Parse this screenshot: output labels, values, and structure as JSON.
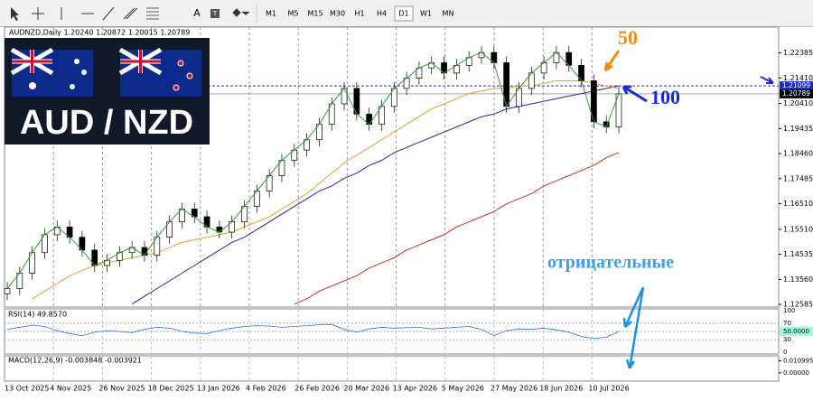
{
  "toolbar": {
    "text_tool": "A",
    "label_tool": "T",
    "timeframes": [
      "M1",
      "M5",
      "M15",
      "M30",
      "H1",
      "H4",
      "D1",
      "W1",
      "MN"
    ]
  },
  "logo": "AUD / NZD",
  "chart": {
    "header": "AUDNZD,Daily  1.20240 1.20872 1.20015 1.20789",
    "ylim": [
      1.1255,
      1.2332
    ],
    "yticks": [
      1.22385,
      {
        "value": 1.2141,
        "label": "1.21410"
      },
      {
        "value": 1.2041,
        "label": "1.20410"
      },
      1.19435,
      {
        "value": 1.1846,
        "label": "1.18460"
      },
      1.17485,
      {
        "value": 1.1651,
        "label": "1.16510"
      },
      {
        "value": 1.1551,
        "label": "1.15510"
      },
      1.14535,
      {
        "value": 1.1356,
        "label": "1.13560"
      },
      1.12585
    ],
    "alert_level": 1.21099,
    "current_price": 1.20789,
    "dates": [
      "13 Oct 2025",
      "4 Nov 2025",
      "26 Nov 2025",
      "18 Dec 2025",
      "13 Jan 2026",
      "4 Feb 2026",
      "26 Feb 2026",
      "20 Mar 2026",
      "13 Apr 2026",
      "5 May 2026",
      "27 May 2026",
      "18 Jun 2026",
      "10 Jul 2026"
    ],
    "close": [
      1.132,
      1.138,
      1.146,
      1.153,
      1.156,
      1.152,
      1.147,
      1.141,
      1.143,
      1.146,
      1.148,
      1.145,
      1.152,
      1.158,
      1.163,
      1.16,
      1.156,
      1.154,
      1.158,
      1.164,
      1.17,
      1.176,
      1.182,
      1.186,
      1.19,
      1.196,
      1.204,
      1.21,
      1.2,
      1.196,
      1.203,
      1.21,
      1.214,
      1.218,
      1.22,
      1.216,
      1.219,
      1.222,
      1.224,
      1.22,
      1.203,
      1.21,
      1.216,
      1.22,
      1.224,
      1.219,
      1.213,
      1.197,
      1.195,
      1.20789
    ],
    "ma50": [
      null,
      null,
      1.128,
      1.131,
      1.134,
      1.137,
      1.139,
      1.141,
      1.142,
      1.143,
      1.144,
      1.145,
      1.146,
      1.148,
      1.15,
      1.151,
      1.152,
      1.153,
      1.154,
      1.156,
      1.158,
      1.16,
      1.163,
      1.166,
      1.169,
      1.173,
      1.177,
      1.181,
      1.184,
      1.187,
      1.19,
      1.193,
      1.196,
      1.199,
      1.202,
      1.204,
      1.206,
      1.208,
      1.209,
      1.21,
      1.21,
      1.211,
      1.211,
      1.212,
      1.213,
      1.213,
      1.213,
      1.212,
      1.211,
      1.21
    ],
    "ma100": [
      null,
      null,
      null,
      null,
      null,
      null,
      null,
      null,
      null,
      null,
      1.126,
      1.129,
      1.132,
      1.135,
      1.138,
      1.141,
      1.144,
      1.147,
      1.15,
      1.152,
      1.155,
      1.158,
      1.161,
      1.164,
      1.167,
      1.17,
      1.172,
      1.175,
      1.177,
      1.18,
      1.182,
      1.185,
      1.187,
      1.189,
      1.191,
      1.193,
      1.195,
      1.197,
      1.199,
      1.2,
      1.202,
      1.203,
      1.204,
      1.205,
      1.206,
      1.207,
      1.208,
      1.209,
      1.21,
      1.211
    ],
    "ma200": [
      null,
      null,
      null,
      null,
      null,
      null,
      null,
      null,
      null,
      null,
      null,
      null,
      null,
      null,
      null,
      null,
      null,
      null,
      null,
      null,
      null,
      null,
      null,
      1.126,
      1.128,
      1.131,
      1.133,
      1.135,
      1.137,
      1.14,
      1.142,
      1.144,
      1.147,
      1.149,
      1.151,
      1.153,
      1.156,
      1.158,
      1.16,
      1.162,
      1.165,
      1.167,
      1.169,
      1.172,
      1.174,
      1.176,
      1.178,
      1.18,
      1.183,
      1.185
    ],
    "annotations": [
      "50",
      "100",
      "отрицательные"
    ]
  },
  "rsi": {
    "label": "RSI(14) 49.8570",
    "ylim": [
      0,
      100
    ],
    "yticks": [
      100,
      70,
      {
        "value": 50,
        "label": "50.0000"
      },
      30,
      0
    ],
    "values": [
      55,
      60,
      65,
      62,
      52,
      45,
      40,
      48,
      52,
      50,
      47,
      55,
      60,
      58,
      50,
      46,
      45,
      52,
      58,
      62,
      64,
      63,
      60,
      62,
      64,
      66,
      67,
      55,
      48,
      56,
      60,
      58,
      59,
      60,
      56,
      58,
      60,
      62,
      55,
      40,
      52,
      56,
      55,
      58,
      54,
      48,
      38,
      33,
      36,
      49.857
    ]
  },
  "macd": {
    "label": "MACD(12,26,9) -0.003848 -0.003921",
    "ylim": [
      -0.006,
      0.014
    ],
    "yticks": [
      0.010995,
      {
        "value": 0,
        "label": "0.00000"
      }
    ]
  }
}
